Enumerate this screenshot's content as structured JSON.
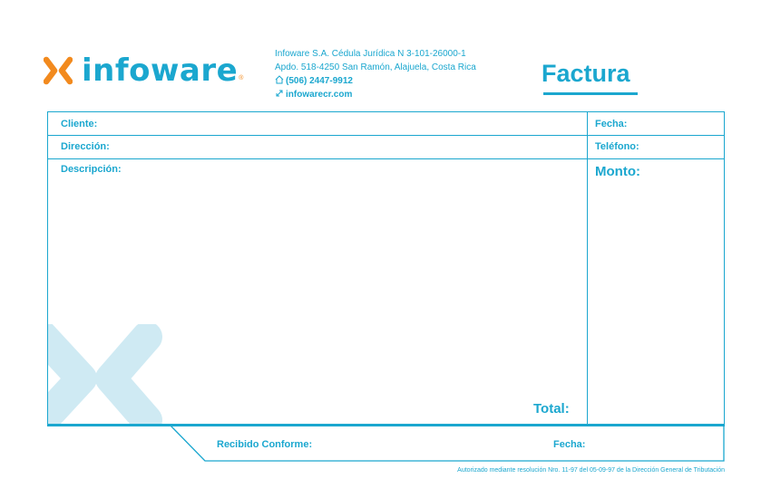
{
  "brand": {
    "wordmark": "infoware",
    "registered": "®",
    "accent_color": "#f28a1e",
    "primary_color": "#1ba7cf"
  },
  "company": {
    "line1": "Infoware S.A. Cédula Jurídica N 3-101-26000-1",
    "line2": "Apdo. 518-4250 San Ramón, Alajuela, Costa Rica",
    "phone_icon": "phone-icon",
    "phone": "(506) 2447-9912",
    "web_icon": "web-icon",
    "website": "infowarecr.com"
  },
  "document": {
    "title": "Factura"
  },
  "fields": {
    "cliente": "Cliente:",
    "direccion": "Dirección:",
    "descripcion": "Descripción:",
    "fecha": "Fecha:",
    "telefono": "Teléfono:",
    "monto": "Monto:",
    "total": "Total:"
  },
  "receipt": {
    "recibido": "Recibido Conforme:",
    "fecha": "Fecha:"
  },
  "footnote": "Autorizado mediante resolución Nro. 11-97 del 05-09-97 de la Dirección General de Tributación"
}
